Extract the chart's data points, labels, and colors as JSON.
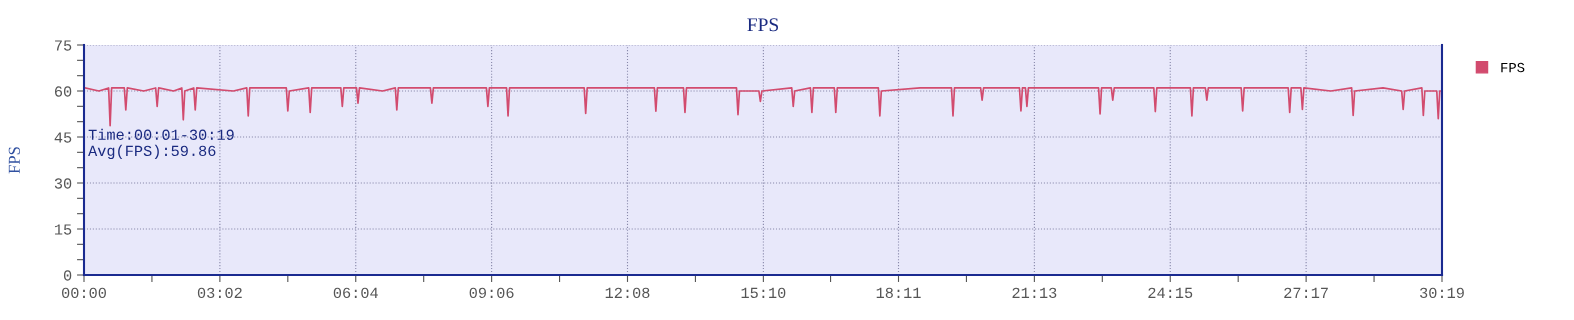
{
  "chart_data": {
    "type": "line",
    "title": "FPS",
    "ylabel": "FPS",
    "legend": "top right",
    "grid": true,
    "marker": "none",
    "line_style": "solid",
    "xlim": [
      0,
      1819
    ],
    "ylim": [
      0,
      75
    ],
    "xticks": [
      {
        "value": 0,
        "label": "00:00"
      },
      {
        "value": 91,
        "label": null
      },
      {
        "value": 182,
        "label": "03:02"
      },
      {
        "value": 273,
        "label": null
      },
      {
        "value": 364,
        "label": "06:04"
      },
      {
        "value": 455,
        "label": null
      },
      {
        "value": 546,
        "label": "09:06"
      },
      {
        "value": 637,
        "label": null
      },
      {
        "value": 728,
        "label": "12:08"
      },
      {
        "value": 819,
        "label": null
      },
      {
        "value": 910,
        "label": "15:10"
      },
      {
        "value": 1000,
        "label": null
      },
      {
        "value": 1091,
        "label": "18:11"
      },
      {
        "value": 1182,
        "label": null
      },
      {
        "value": 1273,
        "label": "21:13"
      },
      {
        "value": 1364,
        "label": null
      },
      {
        "value": 1455,
        "label": "24:15"
      },
      {
        "value": 1546,
        "label": null
      },
      {
        "value": 1637,
        "label": "27:17"
      },
      {
        "value": 1728,
        "label": null
      },
      {
        "value": 1819,
        "label": "30:19"
      }
    ],
    "yticks": [
      0,
      {
        "value": 5,
        "label": null
      },
      {
        "value": 10,
        "label": null
      },
      15,
      {
        "value": 20,
        "label": null
      },
      {
        "value": 25,
        "label": null
      },
      30,
      {
        "value": 35,
        "label": null
      },
      {
        "value": 40,
        "label": null
      },
      45,
      {
        "value": 50,
        "label": null
      },
      {
        "value": 55,
        "label": null
      },
      60,
      {
        "value": 65,
        "label": null
      },
      {
        "value": 70,
        "label": null
      },
      75
    ],
    "annotations": [
      "Time:00:01-30:19",
      "Avg(FPS):59.86"
    ],
    "series": [
      {
        "name": "FPS",
        "color": "#d24b6e",
        "x": [
          1,
          20,
          33,
          35,
          37,
          54,
          56,
          58,
          80,
          96,
          98,
          100,
          120,
          131,
          133,
          135,
          147,
          149,
          151,
          200,
          218,
          220,
          222,
          250,
          271,
          273,
          275,
          301,
          303,
          305,
          330,
          344,
          346,
          348,
          365,
          367,
          369,
          400,
          417,
          419,
          421,
          464,
          466,
          468,
          510,
          539,
          541,
          543,
          566,
          568,
          570,
          620,
          670,
          672,
          674,
          720,
          764,
          766,
          768,
          803,
          805,
          807,
          874,
          876,
          878,
          904,
          906,
          908,
          948,
          950,
          952,
          973,
          975,
          977,
          1005,
          1007,
          1009,
          1040,
          1064,
          1066,
          1068,
          1120,
          1162,
          1164,
          1166,
          1201,
          1203,
          1205,
          1253,
          1255,
          1257,
          1261,
          1263,
          1265,
          1320,
          1359,
          1361,
          1363,
          1376,
          1378,
          1380,
          1433,
          1435,
          1437,
          1482,
          1484,
          1486,
          1502,
          1504,
          1506,
          1550,
          1552,
          1554,
          1613,
          1615,
          1617,
          1630,
          1632,
          1634,
          1670,
          1698,
          1700,
          1702,
          1740,
          1765,
          1767,
          1769,
          1792,
          1794,
          1796,
          1812,
          1814,
          1816,
          1819
        ],
        "values": [
          61,
          60,
          61,
          48.7,
          61,
          61,
          53.8,
          61,
          60,
          61,
          55,
          61,
          60,
          61,
          50.6,
          60,
          61,
          53.8,
          61,
          60,
          61,
          51.9,
          61,
          61,
          61,
          53.5,
          60,
          61,
          53,
          61,
          61,
          61,
          55,
          61,
          61,
          56,
          61,
          60,
          61,
          53.8,
          61,
          61,
          56,
          61,
          61,
          61,
          55,
          61,
          61,
          51.9,
          61,
          61,
          61,
          52.7,
          61,
          61,
          61,
          53.4,
          61,
          61,
          53,
          61,
          61,
          52.3,
          60,
          60,
          56.6,
          60,
          61,
          55,
          60,
          61,
          53,
          61,
          61,
          53,
          61,
          61,
          61,
          51.9,
          60,
          61,
          61,
          51.9,
          61,
          61,
          57,
          61,
          61,
          53.5,
          61,
          61,
          55,
          61,
          61,
          61,
          52.5,
          61,
          61,
          57,
          61,
          61,
          53.3,
          61,
          61,
          51.9,
          61,
          61,
          57,
          61,
          61,
          53.5,
          61,
          61,
          53,
          61,
          61,
          54,
          61,
          60,
          61,
          52,
          60,
          61,
          60,
          54,
          60,
          61,
          52,
          60,
          60,
          51,
          60,
          60
        ]
      }
    ]
  }
}
